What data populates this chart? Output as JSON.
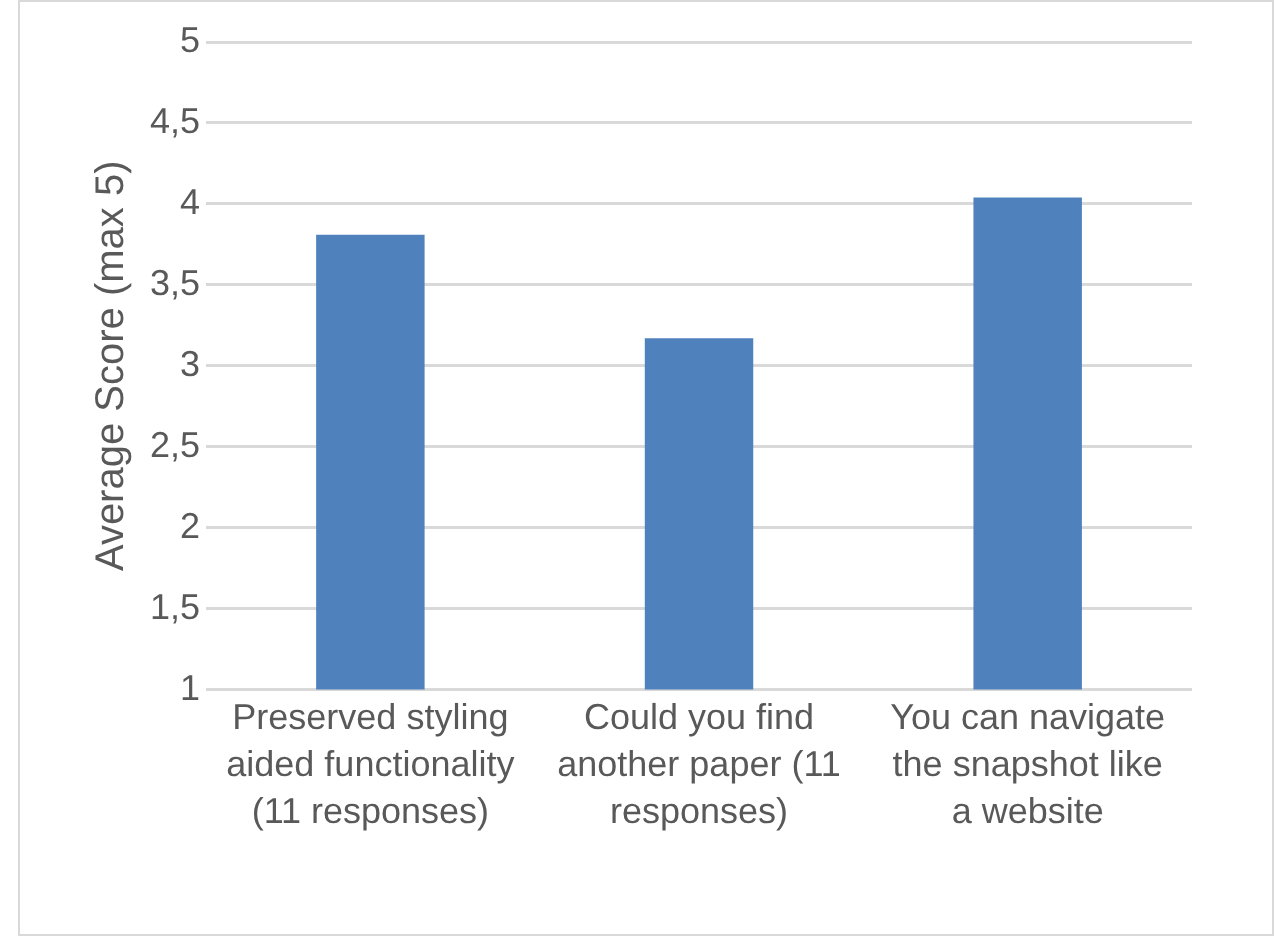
{
  "chart_data": {
    "type": "bar",
    "ylabel": "Average Score (max 5)",
    "categories": [
      "Preserved styling aided functionality (11 responses)",
      "Could you find another paper (11 responses)",
      "You can navigate the snapshot like a website"
    ],
    "values": [
      3.81,
      3.17,
      4.04
    ],
    "color": "#4f81bd",
    "ylim": [
      1,
      5
    ],
    "yticks": [
      1,
      {
        "value": 1.5,
        "label": "1,5"
      },
      2,
      {
        "value": 2.5,
        "label": "2,5"
      },
      3,
      {
        "value": 3.5,
        "label": "3,5"
      },
      4,
      {
        "value": 4.5,
        "label": "4,5"
      },
      5
    ],
    "grid": "y"
  }
}
